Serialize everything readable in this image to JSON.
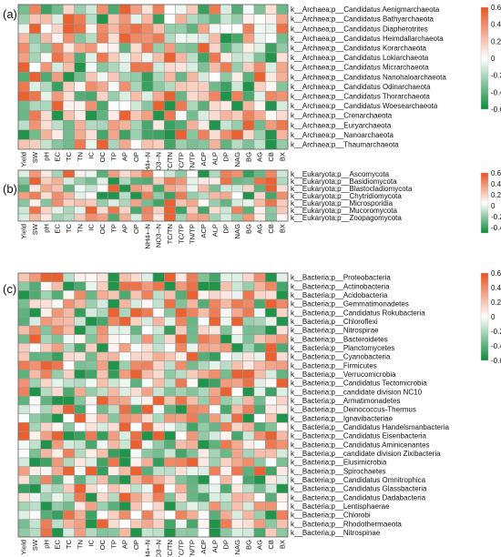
{
  "chart_data": [
    {
      "type": "heatmap",
      "panel_label": "(a)",
      "columns": [
        "Yield",
        "SW",
        "pH",
        "EC",
        "TC",
        "TN",
        "IC",
        "OC",
        "TP",
        "AP",
        "OP",
        "NH4+-N",
        "NO3--N",
        "TC/TN",
        "TC/TP",
        "TN/TP",
        "ACP",
        "ALP",
        "DP",
        "NAG",
        "BG",
        "AG",
        "CB",
        "BX"
      ],
      "rows": [
        "k__Archaea;p__Candidatus Aenigmarchaeota",
        "k__Archaea;p__Candidatus Bathyarchaeota",
        "k__Archaea;p__Candidatus Diapherotrites",
        "k__Archaea;p__Candidatus Heimdallarchaeota",
        "k__Archaea;p__Candidatus Korarchaeota",
        "k__Archaea;p__Candidatus Lokiarchaeota",
        "k__Archaea;p__Candidatus Micrarchaeota",
        "k__Archaea;p__Candidatus Nanohaloarchaeota",
        "k__Archaea;p__Candidatus Odinarchaeota",
        "k__Archaea;p__Candidatus Thorarchaeota",
        "k__Archaea;p__Candidatus Woesearchaeota",
        "k__Archaea;p__Crenarchaeota",
        "k__Archaea;p__Euryarchaeota",
        "k__Archaea;p__Nanoarchaeota",
        "k__Archaea;p__Thaumarchaeota"
      ],
      "colorbar": {
        "ticks": [
          "0.6",
          "0.4",
          "0.2",
          "0",
          "-0.2",
          "-0.4",
          "-0.6"
        ],
        "min": -0.6,
        "max": 0.6
      }
    },
    {
      "type": "heatmap",
      "panel_label": "(b)",
      "columns": [
        "Yield",
        "SW",
        "pH",
        "EC",
        "TC",
        "TN",
        "IC",
        "OC",
        "TP",
        "AP",
        "OP",
        "NH4+-N",
        "NO3--N",
        "TC/TN",
        "TC/TP",
        "TN/TP",
        "ACP",
        "ALP",
        "DP",
        "NAG",
        "BG",
        "AG",
        "CB",
        "BX"
      ],
      "rows": [
        "k__Eukaryota;p__Ascomycota",
        "k__Eukaryota;p__Basidiomycota",
        "k__Eukaryota;p__Blastocladiomycota",
        "k__Eukaryota;p__Chytridiomycota",
        "k__Eukaryota;p__Microsporidia",
        "k__Eukaryota;p__Mucoromycota",
        "k__Eukaryota;p__Zoopagomycota"
      ],
      "colorbar": {
        "ticks": [
          "0.6",
          "0.4",
          "0.2",
          "0",
          "-0.2",
          "-0.4"
        ],
        "min": -0.5,
        "max": 0.6
      }
    },
    {
      "type": "heatmap",
      "panel_label": "(c)",
      "columns": [
        "Yield",
        "SW",
        "pH",
        "EC",
        "TC",
        "TN",
        "IC",
        "OC",
        "TP",
        "AP",
        "OP",
        "NH4+-N",
        "NO3--N",
        "TC/TN",
        "TC/TP",
        "TN/TP",
        "ACP",
        "ALP",
        "DP",
        "NAG",
        "BG",
        "AG",
        "CB",
        "BX"
      ],
      "rows": [
        "k__Bacteria;p__Proteobacteria",
        "k__Bacteria;p__Actinobacteria",
        "k__Bacteria;p__Acidobacteria",
        "k__Bacteria;p__Gemmatimonadetes",
        "k__Bacteria;p__Candidatus Rokubacteria",
        "k__Bacteria;p__Chloroflexi",
        "k__Bacteria;p__Nitrospirae",
        "k__Bacteria;p__Bacteroidetes",
        "k__Bacteria;p__Planctomycetes",
        "k__Bacteria;p__Cyanobacteria",
        "k__Bacteria;p__Firmicutes",
        "k__Bacteria;p__Verrucomicrobia",
        "k__Bacteria;p__Candidatus Tectomicrobia",
        "k__Bacteria;p__candidate division NC10",
        "k__Bacteria;p__Armatimonadetes",
        "k__Bacteria;p__Deinococcus-Thermus",
        "k__Bacteria;p__Ignavibacteriae",
        "k__Bacteria;p__Candidatus Handelsmanbacteria",
        "k__Bacteria;p__Candidatus Eisenbacteria",
        "k__Bacteria;p__Candidatus Aminicenantes",
        "k__Bacteria;p__candidate division Zixibacteria",
        "k__Bacteria;p__Elusimicrobia",
        "k__Bacteria;p__Spirochaetes",
        "k__Bacteria;p__Candidatus Omnitrophica",
        "k__Bacteria;p__Candidatus Glassbacteria",
        "k__Bacteria;p__Candidatus Dadabacteria",
        "k__Bacteria;p__Lentisphaerae",
        "k__Bacteria;p__Chlorobi",
        "k__Bacteria;p__Rhodothermaeota",
        "k__Bacteria;p__Nitrospinae"
      ],
      "colorbar": {
        "ticks": [
          "0.6",
          "0.4",
          "0.2",
          "0",
          "-0.2",
          "-0.4",
          "-0.6"
        ],
        "min": -0.6,
        "max": 0.6
      }
    }
  ],
  "colors": {
    "positive": "#e8531f",
    "negative": "#0c8a3a",
    "neutral": "#ffffff",
    "grid": "#9a9a9a"
  }
}
